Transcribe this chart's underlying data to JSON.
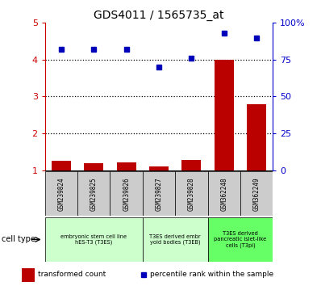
{
  "title": "GDS4011 / 1565735_at",
  "samples": [
    "GSM239824",
    "GSM239825",
    "GSM239826",
    "GSM239827",
    "GSM239828",
    "GSM362248",
    "GSM362249"
  ],
  "transformed_count": [
    1.25,
    1.2,
    1.22,
    1.1,
    1.28,
    4.0,
    2.8
  ],
  "percentile_rank": [
    82,
    82,
    82,
    70,
    76,
    93,
    90
  ],
  "ylim_left": [
    1,
    5
  ],
  "ylim_right": [
    0,
    100
  ],
  "yticks_left": [
    1,
    2,
    3,
    4,
    5
  ],
  "yticks_right": [
    0,
    25,
    50,
    75,
    100
  ],
  "bar_color": "#bb0000",
  "dot_color": "#0000bb",
  "axis_color_left": "#cc0000",
  "axis_color_right": "#0000cc",
  "legend_bar_label": "transformed count",
  "legend_dot_label": "percentile rank within the sample",
  "cell_type_label": "cell type",
  "sample_box_color": "#cccccc",
  "group_labels": [
    "embryonic stem cell line\nhES-T3 (T3ES)",
    "T3ES derived embr\nyoid bodies (T3EB)",
    "T3ES derived\npancreatic islet-like\ncells (T3pi)"
  ],
  "group_colors": [
    "#ccffcc",
    "#ccffcc",
    "#66ff66"
  ],
  "group_ranges": [
    [
      0,
      3
    ],
    [
      3,
      5
    ],
    [
      5,
      7
    ]
  ],
  "fig_width": 3.98,
  "fig_height": 3.54,
  "dpi": 100
}
